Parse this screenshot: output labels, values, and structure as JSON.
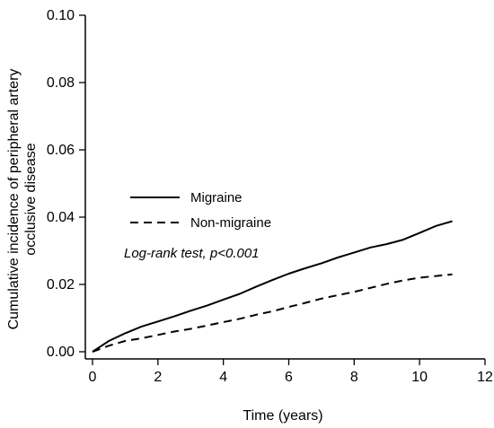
{
  "chart_data": {
    "type": "line",
    "xlabel": "Time (years)",
    "ylabel_lines": [
      "Cumulative incidence of peripheral artery",
      "occlusive disease"
    ],
    "xlim": [
      0,
      12
    ],
    "ylim": [
      0,
      0.1
    ],
    "x_ticks": [
      0,
      2,
      4,
      6,
      8,
      10,
      12
    ],
    "x_tick_labels": [
      "0",
      "2",
      "4",
      "6",
      "8",
      "10",
      "12"
    ],
    "y_ticks": [
      0,
      0.02,
      0.04,
      0.06,
      0.08,
      0.1
    ],
    "y_tick_labels": [
      "0.00",
      "0.02",
      "0.04",
      "0.06",
      "0.08",
      "0.10"
    ],
    "grid": false,
    "legend_position": "center-left",
    "annotation": "Log-rank test, p<0.001",
    "series": [
      {
        "name": "Migraine",
        "style": "solid",
        "x": [
          0,
          0.5,
          1,
          1.5,
          2,
          2.5,
          3,
          3.5,
          4,
          4.5,
          5,
          5.5,
          6,
          6.5,
          7,
          7.5,
          8,
          8.5,
          9,
          9.5,
          10,
          10.5,
          11
        ],
        "y": [
          0,
          0.0032,
          0.0055,
          0.0075,
          0.009,
          0.0105,
          0.0122,
          0.0137,
          0.0155,
          0.0172,
          0.0193,
          0.0213,
          0.0232,
          0.0248,
          0.0263,
          0.028,
          0.0295,
          0.031,
          0.032,
          0.0333,
          0.0353,
          0.0374,
          0.0388
        ]
      },
      {
        "name": "Non-migraine",
        "style": "dashed",
        "x": [
          0,
          0.5,
          1,
          1.5,
          2,
          2.5,
          3,
          3.5,
          4,
          4.5,
          5,
          5.5,
          6,
          6.5,
          7,
          7.5,
          8,
          8.5,
          9,
          9.5,
          10,
          10.5,
          11
        ],
        "y": [
          0,
          0.0018,
          0.0032,
          0.004,
          0.005,
          0.006,
          0.0068,
          0.0078,
          0.0088,
          0.0098,
          0.011,
          0.012,
          0.0133,
          0.0145,
          0.0158,
          0.0168,
          0.0178,
          0.019,
          0.0202,
          0.0212,
          0.022,
          0.0225,
          0.023
        ]
      }
    ]
  }
}
